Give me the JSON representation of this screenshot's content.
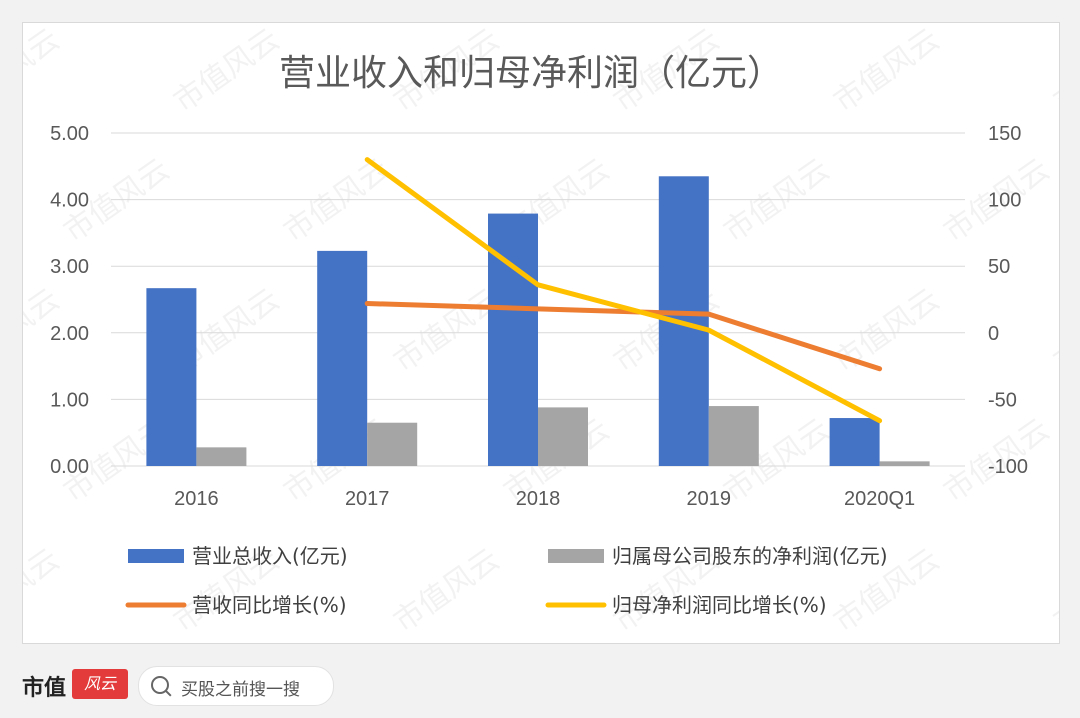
{
  "chart_data": {
    "type": "bar",
    "title": "营业收入和归母净利润（亿元）",
    "categories": [
      "2016",
      "2017",
      "2018",
      "2019",
      "2020Q1"
    ],
    "left_axis": {
      "ylim": [
        0,
        5
      ],
      "ticks": [
        "0.00",
        "1.00",
        "2.00",
        "3.00",
        "4.00",
        "5.00"
      ]
    },
    "right_axis": {
      "ylim": [
        -100,
        150
      ],
      "ticks": [
        "-100",
        "-50",
        "0",
        "50",
        "100",
        "150"
      ]
    },
    "grid": true,
    "legend_position": "bottom",
    "series": [
      {
        "name": "营业总收入(亿元)",
        "kind": "bar",
        "axis": "left",
        "color": "#4472C4",
        "values": [
          2.67,
          3.23,
          3.79,
          4.35,
          0.72
        ]
      },
      {
        "name": "归属母公司股东的净利润(亿元)",
        "kind": "bar",
        "axis": "left",
        "color": "#A5A5A5",
        "values": [
          0.28,
          0.65,
          0.88,
          0.9,
          0.07
        ]
      },
      {
        "name": "营收同比增长(%)",
        "kind": "line",
        "axis": "right",
        "color": "#ED7D31",
        "values": [
          null,
          22,
          18,
          14,
          -27
        ]
      },
      {
        "name": "归母净利润同比增长(%)",
        "kind": "line",
        "axis": "right",
        "color": "#FFC000",
        "values": [
          null,
          130,
          36,
          2,
          -66
        ]
      }
    ]
  },
  "watermark": "市值风云",
  "footer": {
    "brand": "市值",
    "logo_text": "风云",
    "search_placeholder": "买股之前搜一搜"
  }
}
